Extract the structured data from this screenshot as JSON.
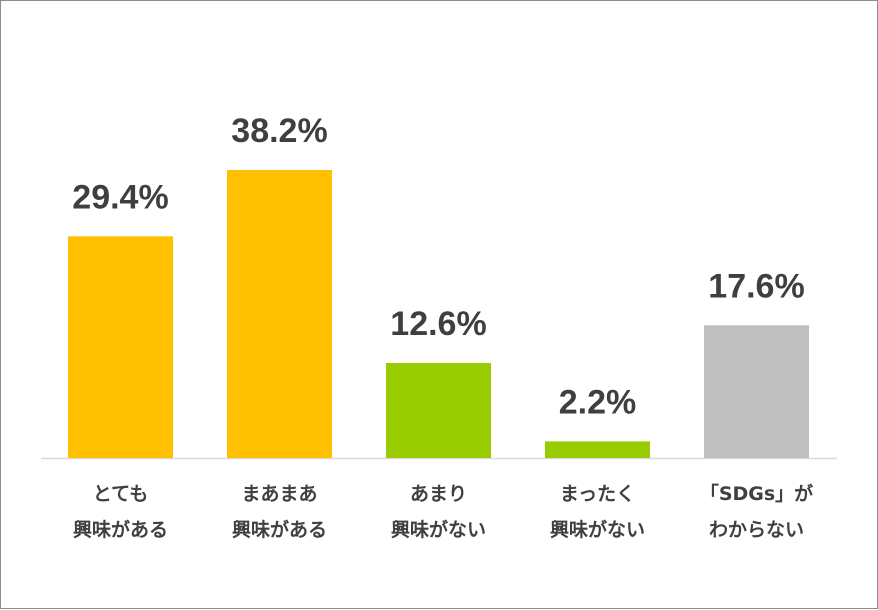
{
  "chart_data": {
    "type": "bar",
    "categories": [
      [
        "とても",
        "興味がある"
      ],
      [
        "まあまあ",
        "興味がある"
      ],
      [
        "あまり",
        "興味がない"
      ],
      [
        "まったく",
        "興味がない"
      ],
      [
        "「SDGs」が",
        "わからない"
      ]
    ],
    "values": [
      29.4,
      38.2,
      12.6,
      2.2,
      17.6
    ],
    "value_labels": [
      "29.4%",
      "38.2%",
      "12.6%",
      "2.2%",
      "17.6%"
    ],
    "colors": [
      "#FFC000",
      "#FFC000",
      "#99CC00",
      "#99CC00",
      "#BFBFBF"
    ],
    "ylim": [
      0,
      38.2
    ],
    "grid": false,
    "legend": "none"
  }
}
